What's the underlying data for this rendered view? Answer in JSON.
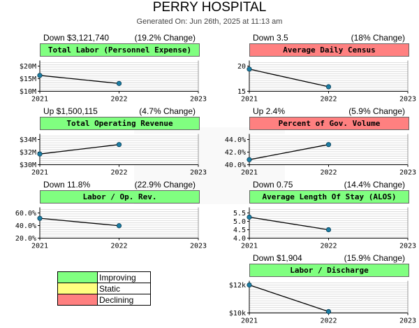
{
  "title": "PERRY HOSPITAL",
  "generated": "Generated On: Jun 26th, 2025 at 11:13 am",
  "legend": [
    {
      "label": "Improving",
      "color": "#80ff80"
    },
    {
      "label": "Static",
      "color": "#ffff80"
    },
    {
      "label": "Declining",
      "color": "#ff8080"
    }
  ],
  "chart_data": [
    {
      "type": "line",
      "title": "Total Labor (Personnel Expense)",
      "status": "Improving",
      "change_left": "Down $3,121,740",
      "change_right": "(19.2% Change)",
      "x": [
        2021,
        2022
      ],
      "xticks": [
        "2021",
        "2022",
        "2023"
      ],
      "y": [
        16300000,
        13100000
      ],
      "ylim": [
        10000000,
        20000000
      ],
      "yticks": [
        {
          "value": 10000000,
          "label": "$10M"
        },
        {
          "value": 15000000,
          "label": "$15M"
        },
        {
          "value": 20000000,
          "label": "$20M"
        }
      ],
      "grid": true
    },
    {
      "type": "line",
      "title": "Average Daily Census",
      "status": "Declining",
      "change_left": "Down 3.5",
      "change_right": "(18% Change)",
      "x": [
        2021,
        2022
      ],
      "xticks": [
        "2021",
        "2022",
        "2023"
      ],
      "y": [
        19.4,
        15.9
      ],
      "ylim": [
        15,
        20
      ],
      "yticks": [
        {
          "value": 15,
          "label": "15"
        },
        {
          "value": 20,
          "label": "20"
        }
      ],
      "grid": true
    },
    {
      "type": "line",
      "title": "Total Operating Revenue",
      "status": "Improving",
      "change_left": "Up $1,500,115",
      "change_right": "(4.7% Change)",
      "x": [
        2021,
        2022
      ],
      "xticks": [
        "2021",
        "2022",
        "2023"
      ],
      "y": [
        31700000,
        33200000
      ],
      "ylim": [
        30000000,
        34000000
      ],
      "yticks": [
        {
          "value": 30000000,
          "label": "$30M"
        },
        {
          "value": 32000000,
          "label": "$32M"
        },
        {
          "value": 34000000,
          "label": "$34M"
        }
      ],
      "grid": true
    },
    {
      "type": "line",
      "title": "Percent of Gov. Volume",
      "status": "Declining",
      "change_left": "Up 2.4%",
      "change_right": "(5.9% Change)",
      "x": [
        2021,
        2022
      ],
      "xticks": [
        "2021",
        "2022",
        "2023"
      ],
      "y": [
        40.8,
        43.2
      ],
      "ylim": [
        40,
        44
      ],
      "yticks": [
        {
          "value": 40,
          "label": "40.0%"
        },
        {
          "value": 42,
          "label": "42.0%"
        },
        {
          "value": 44,
          "label": "44.0%"
        }
      ],
      "grid": true
    },
    {
      "type": "line",
      "title": "Labor / Op. Rev.",
      "status": "Improving",
      "change_left": "Down 11.8%",
      "change_right": "(22.9% Change)",
      "x": [
        2021,
        2022
      ],
      "xticks": [
        "2021",
        "2022",
        "2023"
      ],
      "y": [
        51.5,
        39.7
      ],
      "ylim": [
        20,
        60
      ],
      "yticks": [
        {
          "value": 20,
          "label": "20.0%"
        },
        {
          "value": 40,
          "label": "40.0%"
        },
        {
          "value": 60,
          "label": "60.0%"
        }
      ],
      "grid": true
    },
    {
      "type": "line",
      "title": "Average Length Of Stay (ALOS)",
      "status": "Improving",
      "change_left": "Down 0.75",
      "change_right": "(14.4% Change)",
      "x": [
        2021,
        2022
      ],
      "xticks": [
        "2021",
        "2022",
        "2023"
      ],
      "y": [
        5.25,
        4.5
      ],
      "ylim": [
        4,
        5.5
      ],
      "yticks": [
        {
          "value": 4,
          "label": "4.0"
        },
        {
          "value": 4.5,
          "label": "4.5"
        },
        {
          "value": 5,
          "label": "5.0"
        },
        {
          "value": 5.5,
          "label": "5.5"
        }
      ],
      "grid": true
    },
    {
      "type": "line",
      "title": "Labor / Discharge",
      "status": "Improving",
      "change_left": "Down $1,904",
      "change_right": "(15.9% Change)",
      "x": [
        2021,
        2022
      ],
      "xticks": [
        "2021",
        "2022",
        "2023"
      ],
      "y": [
        12000,
        10100
      ],
      "ylim": [
        10000,
        12000
      ],
      "yticks": [
        {
          "value": 10000,
          "label": "$10k"
        },
        {
          "value": 12000,
          "label": "$12k"
        }
      ],
      "grid": true
    }
  ]
}
